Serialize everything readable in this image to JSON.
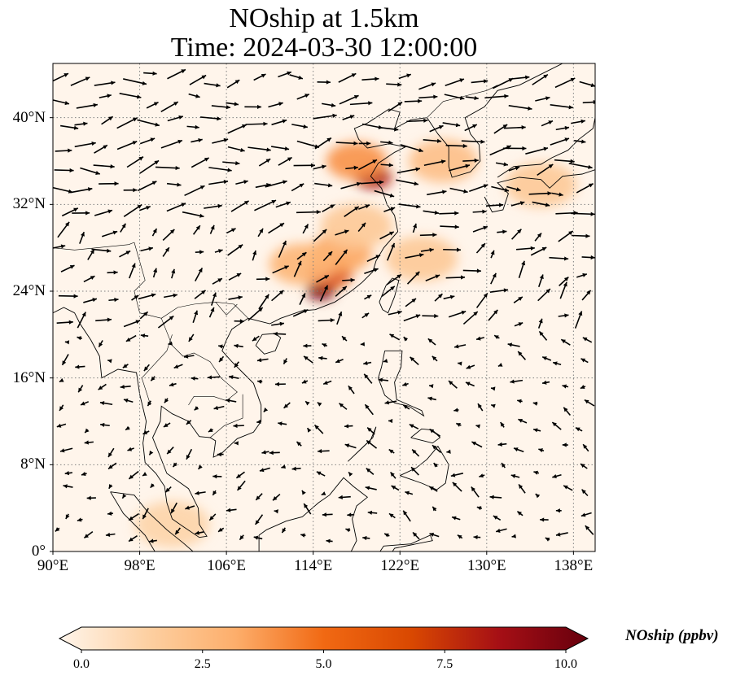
{
  "title": {
    "line1": "NOship at 1.5km",
    "line2": "Time: 2024-03-30 12:00:00"
  },
  "map": {
    "extent": {
      "lon_min": 90,
      "lon_max": 140,
      "lat_min": 0,
      "lat_max": 45
    },
    "gridlines": "dotted gray",
    "lat_ticks": [
      {
        "value": 0,
        "label": "0°"
      },
      {
        "value": 8,
        "label": "8°N"
      },
      {
        "value": 16,
        "label": "16°N"
      },
      {
        "value": 24,
        "label": "24°N"
      },
      {
        "value": 32,
        "label": "32°N"
      },
      {
        "value": 40,
        "label": "40°N"
      }
    ],
    "lon_ticks": [
      {
        "value": 90,
        "label": "90°E"
      },
      {
        "value": 98,
        "label": "98°E"
      },
      {
        "value": 106,
        "label": "106°E"
      },
      {
        "value": 114,
        "label": "114°E"
      },
      {
        "value": 122,
        "label": "122°E"
      },
      {
        "value": 130,
        "label": "130°E"
      },
      {
        "value": 138,
        "label": "138°E"
      }
    ],
    "hotspots": [
      {
        "lon": 114.7,
        "lat": 24.0,
        "value": 9.5
      },
      {
        "lon": 115.5,
        "lat": 25.6,
        "value": 6.5
      },
      {
        "lon": 119.5,
        "lat": 34.5,
        "value": 8.0
      },
      {
        "lon": 118.0,
        "lat": 36.0,
        "value": 4.0
      },
      {
        "lon": 116.5,
        "lat": 27.5,
        "value": 3.5
      },
      {
        "lon": 113.0,
        "lat": 26.5,
        "value": 3.0
      },
      {
        "lon": 124.0,
        "lat": 27.0,
        "value": 2.0
      },
      {
        "lon": 126.0,
        "lat": 36.0,
        "value": 2.5
      },
      {
        "lon": 135.0,
        "lat": 33.8,
        "value": 2.0
      },
      {
        "lon": 118.0,
        "lat": 30.0,
        "value": 2.0
      },
      {
        "lon": 101.0,
        "lat": 2.5,
        "value": 1.5
      }
    ]
  },
  "colorbar": {
    "label": "NOship (ppbv)",
    "colormap": [
      "#fff5eb",
      "#fdd0a2",
      "#fdae6b",
      "#f16913",
      "#d94801",
      "#a50f15",
      "#67000d"
    ],
    "ticks": [
      "0.0",
      "2.5",
      "5.0",
      "7.5",
      "10.0"
    ],
    "range": [
      0,
      10
    ]
  }
}
